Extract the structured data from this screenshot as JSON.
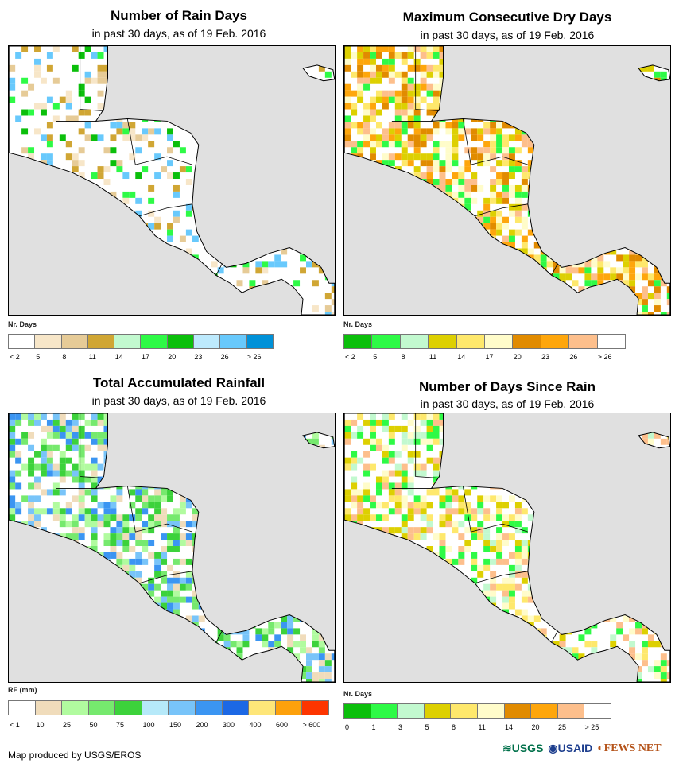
{
  "panels": [
    {
      "title": "Number of Rain Days",
      "subtitle": "in past 30 days, as of 19 Feb. 2016",
      "legend_title": "Nr. Days",
      "colors": [
        "#ffffff",
        "#f7e6c8",
        "#e6cb97",
        "#d0a634",
        "#c2f9cf",
        "#2efa46",
        "#0bbf0b",
        "#bdeafd",
        "#68c9fc",
        "#0091d8"
      ],
      "labels": [
        "< 2",
        "5",
        "8",
        "11",
        "14",
        "17",
        "20",
        "23",
        "26",
        "> 26"
      ],
      "map_palette": [
        "#f7e6c8",
        "#e6cb97",
        "#d0a634",
        "#2efa46",
        "#0bbf0b",
        "#68c9fc"
      ]
    },
    {
      "title": "Maximum Consecutive Dry Days",
      "subtitle": "in past 30 days, as of 19 Feb. 2016",
      "legend_title": "Nr. Days",
      "colors": [
        "#0bbf0b",
        "#2efa46",
        "#c2f9cf",
        "#ddd001",
        "#fee86c",
        "#fffcca",
        "#e18b00",
        "#fea60c",
        "#fdbf8c",
        "#ffffff"
      ],
      "labels": [
        "< 2",
        "5",
        "8",
        "11",
        "14",
        "17",
        "20",
        "23",
        "26",
        "> 26"
      ],
      "map_palette": [
        "#fdbf8c",
        "#fea60c",
        "#e18b00",
        "#fee86c",
        "#fffcca",
        "#ddd001",
        "#2efa46"
      ]
    },
    {
      "title": "Total Accumulated Rainfall",
      "subtitle": "in past 30 days, as of 19 Feb. 2016",
      "legend_title": "RF (mm)",
      "colors": [
        "#ffffff",
        "#f0dcbb",
        "#b1fb9f",
        "#76e96e",
        "#3cd23b",
        "#b6e9f9",
        "#78c4f9",
        "#3b95f2",
        "#1c68e5",
        "#fee679",
        "#fda10c",
        "#fd3500"
      ],
      "labels": [
        "< 1",
        "10",
        "25",
        "50",
        "75",
        "100",
        "150",
        "200",
        "300",
        "400",
        "600",
        "> 600"
      ],
      "map_palette": [
        "#b1fb9f",
        "#76e96e",
        "#3cd23b",
        "#f0dcbb",
        "#3b95f2",
        "#78c4f9"
      ]
    },
    {
      "title": "Number of Days Since Rain",
      "subtitle": "in past 30 days, as of 19 Feb. 2016",
      "legend_title": "Nr. Days",
      "colors": [
        "#0bbf0b",
        "#2efa46",
        "#c2f9cf",
        "#ddd001",
        "#fee86c",
        "#fffcca",
        "#e18b00",
        "#fea60c",
        "#fdbf8c",
        "#ffffff"
      ],
      "labels": [
        "0",
        "1",
        "3",
        "5",
        "8",
        "11",
        "14",
        "20",
        "25",
        "> 25"
      ],
      "map_palette": [
        "#fdbf8c",
        "#ddd001",
        "#fee86c",
        "#c2f9cf",
        "#2efa46",
        "#fffcca"
      ]
    }
  ],
  "footer": "Map produced by USGS/EROS",
  "logos": {
    "usgs": "USGS",
    "usaid": "USAID",
    "fewsnet": "FEWS NET"
  }
}
